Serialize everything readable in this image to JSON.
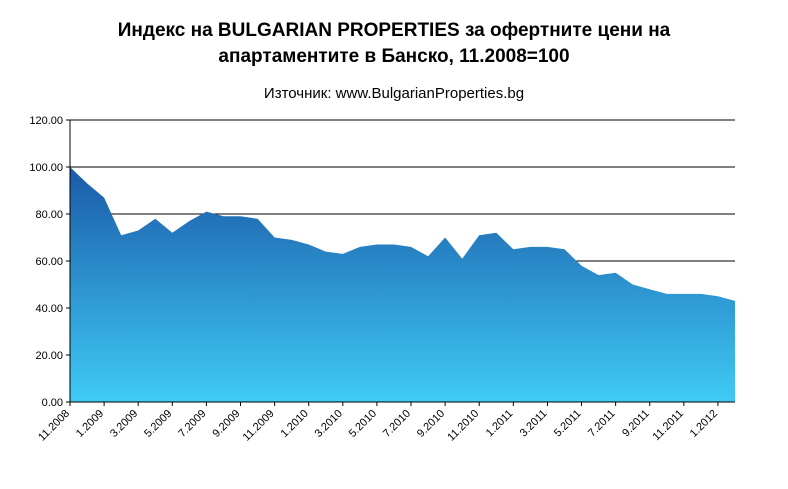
{
  "chart_data": {
    "type": "area",
    "title": "Индекс на BULGARIAN PROPERTIES за офертните цени на апартаментите в Банско, 11.2008=100",
    "subtitle": "Източник: www.BulgarianProperties.bg",
    "x": [
      "11.2008",
      "12.2008",
      "1.2009",
      "2.2009",
      "3.2009",
      "4.2009",
      "5.2009",
      "6.2009",
      "7.2009",
      "8.2009",
      "9.2009",
      "10.2009",
      "11.2009",
      "12.2009",
      "1.2010",
      "2.2010",
      "3.2010",
      "4.2010",
      "5.2010",
      "6.2010",
      "7.2010",
      "8.2010",
      "9.2010",
      "10.2010",
      "11.2010",
      "12.2010",
      "1.2011",
      "2.2011",
      "3.2011",
      "4.2011",
      "5.2011",
      "6.2011",
      "7.2011",
      "8.2011",
      "9.2011",
      "10.2011",
      "11.2011",
      "12.2011",
      "1.2012",
      "2.2012"
    ],
    "values": [
      100,
      93,
      87,
      71,
      73,
      78,
      72,
      77,
      81,
      79,
      79,
      78,
      70,
      69,
      67,
      64,
      63,
      66,
      67,
      67,
      66,
      62,
      70,
      61,
      71,
      72,
      65,
      66,
      66,
      65,
      58,
      54,
      55,
      50,
      48,
      46,
      46,
      46,
      45,
      43
    ],
    "x_tick_labels": [
      "11.2008",
      "1.2009",
      "3.2009",
      "5.2009",
      "7.2009",
      "9.2009",
      "11.2009",
      "1.2010",
      "3.2010",
      "5.2010",
      "7.2010",
      "9.2010",
      "11.2010",
      "1.2011",
      "3.2011",
      "5.2011",
      "7.2011",
      "9.2011",
      "11.2011",
      "1.2012"
    ],
    "y_ticks": [
      "0.00",
      "20.00",
      "40.00",
      "60.00",
      "80.00",
      "100.00",
      "120.00"
    ],
    "ylim": [
      0,
      120
    ],
    "xlabel": "",
    "ylabel": "",
    "grid": true,
    "legend": "none",
    "colors": {
      "area_top": "#1a5aa8",
      "area_bottom": "#3fcbf5",
      "gridline": "#000000",
      "axis": "#000000",
      "text": "#000000"
    }
  }
}
